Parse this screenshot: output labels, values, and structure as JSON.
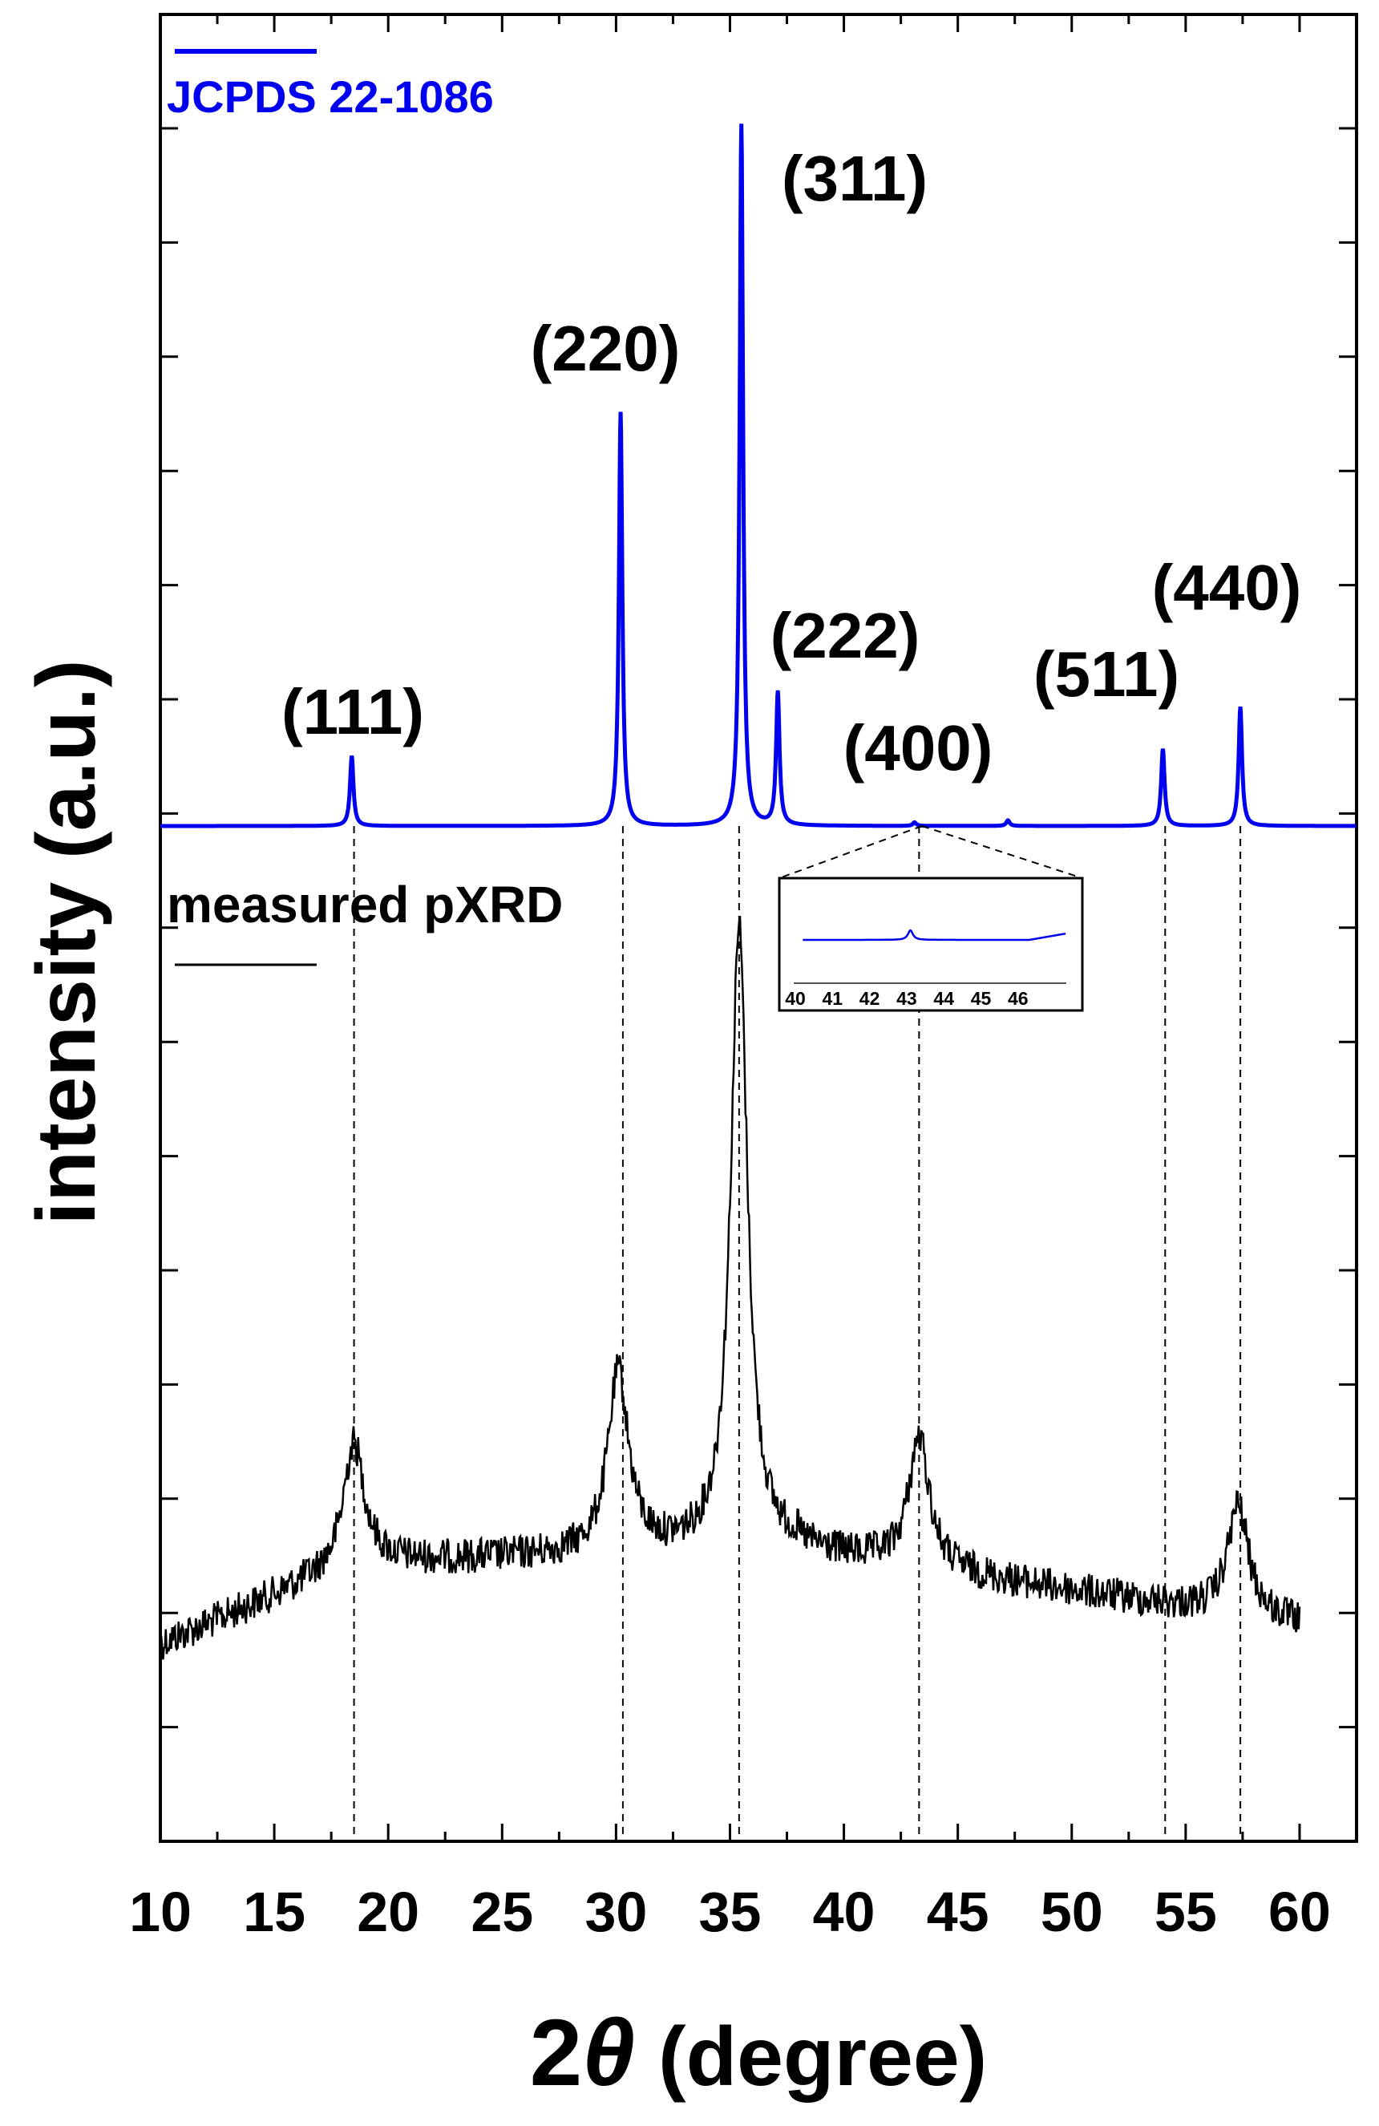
{
  "chart_data": {
    "type": "line",
    "xlabel_main": "2",
    "xlabel_theta": "θ",
    "xlabel_rest": " (degree)",
    "ylabel": "intensity (a.u.)",
    "xlim": [
      10,
      62.5
    ],
    "xticks": [
      10,
      15,
      20,
      25,
      30,
      35,
      40,
      45,
      50,
      55,
      60
    ],
    "yticks_labels_shown": false,
    "grid": false,
    "series": [
      {
        "name": "JCPDS 22-1086",
        "color": "#0000ee",
        "legend_position": "top-left",
        "peaks": [
          {
            "hkl": "(111)",
            "two_theta": 18.4,
            "rel_intensity": 10
          },
          {
            "hkl": "(220)",
            "two_theta": 30.2,
            "rel_intensity": 59
          },
          {
            "hkl": "(311)",
            "two_theta": 35.5,
            "rel_intensity": 100
          },
          {
            "hkl": "(222)",
            "two_theta": 37.1,
            "rel_intensity": 19
          },
          {
            "hkl": "(400)",
            "two_theta": 43.1,
            "rel_intensity": 0.5
          },
          {
            "hkl": null,
            "two_theta": 47.2,
            "rel_intensity": 0.8
          },
          {
            "hkl": "(511)",
            "two_theta": 54.0,
            "rel_intensity": 11
          },
          {
            "hkl": "(440)",
            "two_theta": 57.4,
            "rel_intensity": 17
          }
        ]
      },
      {
        "name": "measured pXRD",
        "color": "#000000",
        "legend_position": "left",
        "x_range": [
          10,
          60
        ],
        "peaks": [
          {
            "two_theta": 18.5,
            "rel_height": 12
          },
          {
            "two_theta": 30.1,
            "rel_height": 18
          },
          {
            "two_theta": 35.4,
            "rel_height": 62
          },
          {
            "two_theta": 43.3,
            "rel_height": 13
          },
          {
            "two_theta": 57.3,
            "rel_height": 11
          }
        ]
      }
    ],
    "reference_lines_two_theta": [
      18.5,
      30.3,
      35.4,
      43.3,
      54.1,
      57.4
    ],
    "inset": {
      "description_of": "JCPDS 22-1086 zoom",
      "xticks": [
        40,
        41,
        42,
        43,
        44,
        45,
        46
      ],
      "peak_two_theta": 43.1
    }
  }
}
